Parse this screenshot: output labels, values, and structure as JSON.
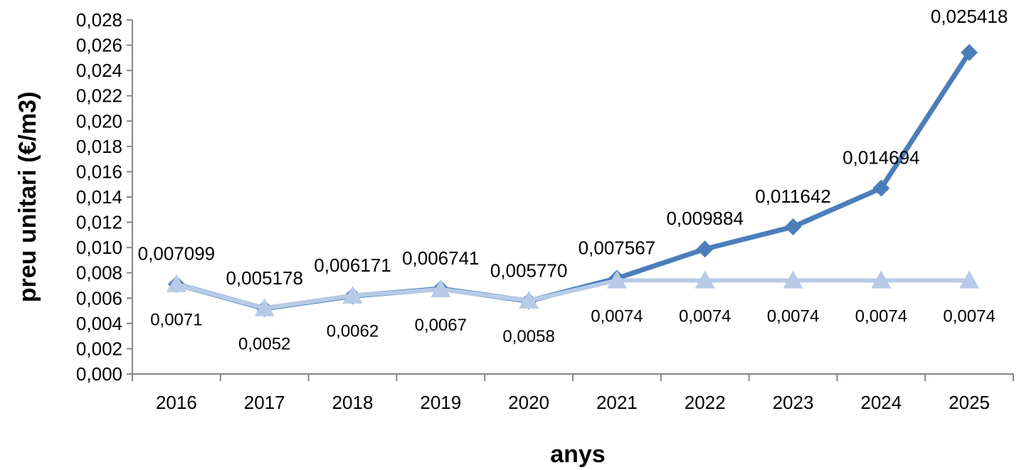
{
  "chart_data": {
    "type": "line",
    "xlabel": "anys",
    "ylabel": "preu unitari (€/m3)",
    "categories": [
      "2016",
      "2017",
      "2018",
      "2019",
      "2020",
      "2021",
      "2022",
      "2023",
      "2024",
      "2025"
    ],
    "ylim": [
      0,
      0.028
    ],
    "y_ticks": [
      "0,000",
      "0,002",
      "0,004",
      "0,006",
      "0,008",
      "0,010",
      "0,012",
      "0,014",
      "0,016",
      "0,018",
      "0,020",
      "0,022",
      "0,024",
      "0,026",
      "0,028"
    ],
    "grid": false,
    "legend": "none",
    "series": [
      {
        "marker": "diamond",
        "color": "#4a7ebb",
        "values": [
          0.007099,
          0.005178,
          0.006171,
          0.006741,
          0.00577,
          0.007567,
          0.009884,
          0.011642,
          0.014694,
          0.025418
        ],
        "labels": [
          "0,007099",
          "0,005178",
          "0,006171",
          "0,006741",
          "0,005770",
          "0,007567",
          "0,009884",
          "0,011642",
          "0,014694",
          "0,025418"
        ]
      },
      {
        "marker": "triangle",
        "color": "#b7cbe6",
        "values": [
          0.0071,
          0.0052,
          0.0062,
          0.0067,
          0.0058,
          0.0074,
          0.0074,
          0.0074,
          0.0074,
          0.0074
        ],
        "labels": [
          "0,0071",
          "0,0052",
          "0,0062",
          "0,0067",
          "0,0058",
          "0,0074",
          "0,0074",
          "0,0074",
          "0,0074",
          "0,0074"
        ]
      }
    ]
  }
}
